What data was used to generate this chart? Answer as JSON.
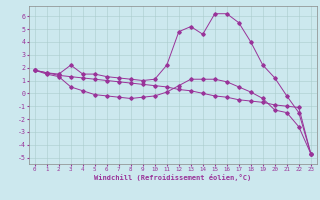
{
  "xlabel": "Windchill (Refroidissement éolien,°C)",
  "background_color": "#cce8ee",
  "grid_color": "#aacccc",
  "line_color": "#993399",
  "xlim": [
    -0.5,
    23.5
  ],
  "ylim": [
    -5.5,
    6.8
  ],
  "yticks": [
    -5,
    -4,
    -3,
    -2,
    -1,
    0,
    1,
    2,
    3,
    4,
    5,
    6
  ],
  "xticks": [
    0,
    1,
    2,
    3,
    4,
    5,
    6,
    7,
    8,
    9,
    10,
    11,
    12,
    13,
    14,
    15,
    16,
    17,
    18,
    19,
    20,
    21,
    22,
    23
  ],
  "line1_x": [
    0,
    1,
    2,
    3,
    4,
    5,
    6,
    7,
    8,
    9,
    10,
    11,
    12,
    13,
    14,
    15,
    16,
    17,
    18,
    19,
    20,
    21,
    22,
    23
  ],
  "line1_y": [
    1.8,
    1.6,
    1.5,
    2.2,
    1.5,
    1.5,
    1.3,
    1.2,
    1.1,
    1.0,
    1.1,
    2.2,
    4.8,
    5.2,
    4.6,
    6.2,
    6.2,
    5.5,
    4.0,
    2.2,
    1.2,
    -0.2,
    -1.5,
    -4.7
  ],
  "line2_x": [
    0,
    1,
    2,
    3,
    4,
    5,
    6,
    7,
    8,
    9,
    10,
    11,
    12,
    13,
    14,
    15,
    16,
    17,
    18,
    19,
    20,
    21,
    22,
    23
  ],
  "line2_y": [
    1.8,
    1.6,
    1.4,
    1.3,
    1.2,
    1.1,
    1.0,
    0.9,
    0.8,
    0.7,
    0.6,
    0.5,
    0.3,
    0.2,
    0.0,
    -0.2,
    -0.3,
    -0.5,
    -0.6,
    -0.7,
    -0.9,
    -1.0,
    -1.1,
    -4.7
  ],
  "line3_x": [
    0,
    1,
    2,
    3,
    4,
    5,
    6,
    7,
    8,
    9,
    10,
    11,
    12,
    13,
    14,
    15,
    16,
    17,
    18,
    19,
    20,
    21,
    22,
    23
  ],
  "line3_y": [
    1.8,
    1.5,
    1.3,
    0.5,
    0.2,
    -0.1,
    -0.2,
    -0.3,
    -0.4,
    -0.3,
    -0.2,
    0.1,
    0.6,
    1.1,
    1.1,
    1.1,
    0.9,
    0.5,
    0.1,
    -0.4,
    -1.3,
    -1.5,
    -2.6,
    -4.7
  ]
}
